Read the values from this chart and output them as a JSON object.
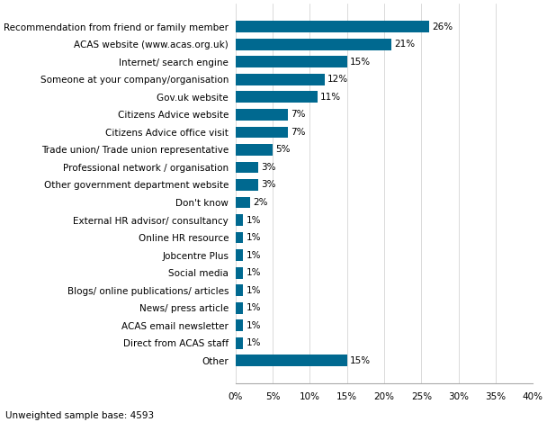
{
  "categories": [
    "Recommendation from friend or family member",
    "ACAS website (www.acas.org.uk)",
    "Internet/ search engine",
    "Someone at your company/organisation",
    "Gov.uk website",
    "Citizens Advice website",
    "Citizens Advice office visit",
    "Trade union/ Trade union representative",
    "Professional network / organisation",
    "Other government department website",
    "Don't know",
    "External HR advisor/ consultancy",
    "Online HR resource",
    "Jobcentre Plus",
    "Social media",
    "Blogs/ online publications/ articles",
    "News/ press article",
    "ACAS email newsletter",
    "Direct from ACAS staff",
    "Other"
  ],
  "values": [
    26,
    21,
    15,
    12,
    11,
    7,
    7,
    5,
    3,
    3,
    2,
    1,
    1,
    1,
    1,
    1,
    1,
    1,
    1,
    15
  ],
  "bar_color": "#006990",
  "label_color": "#000000",
  "background_color": "#ffffff",
  "xlim": [
    0,
    40
  ],
  "xticks": [
    0,
    5,
    10,
    15,
    20,
    25,
    30,
    35,
    40
  ],
  "xtick_labels": [
    "0%",
    "5%",
    "10%",
    "15%",
    "20%",
    "25%",
    "30%",
    "35%",
    "40%"
  ],
  "footnote": "Unweighted sample base: 4593",
  "label_fontsize": 7.5,
  "tick_fontsize": 7.5,
  "footnote_fontsize": 7.5,
  "bar_height": 0.65
}
